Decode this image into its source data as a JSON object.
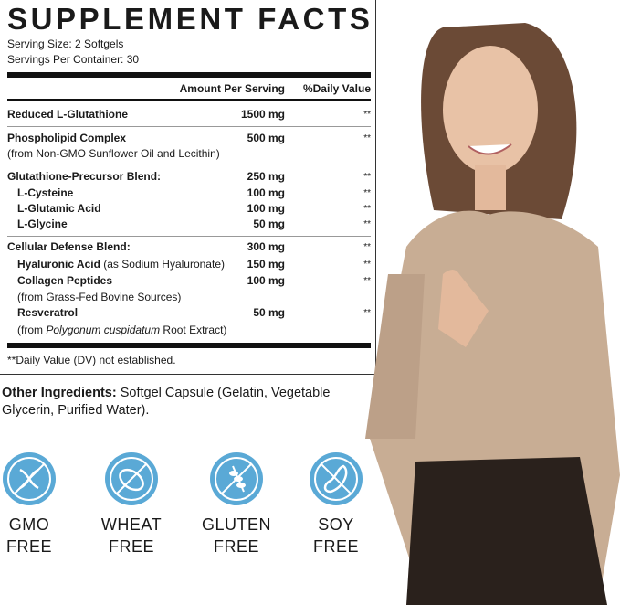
{
  "facts": {
    "title": "SUPPLEMENT FACTS",
    "serving_size": "Serving Size: 2 Softgels",
    "servings_per_container": "Servings Per Container: 30",
    "header_amount": "Amount Per Serving",
    "header_dv": "%Daily Value",
    "rows": [
      {
        "name": "Reduced L-Glutathione",
        "amount": "1500 mg",
        "dv": "**"
      },
      {
        "name": "Phospholipid Complex",
        "amount": "500 mg",
        "dv": "**"
      },
      {
        "name": "(from Non-GMO Sunflower Oil and Lecithin)"
      },
      {
        "name": "Glutathione-Precursor Blend:",
        "amount": "250 mg",
        "dv": "**"
      },
      {
        "name": "L-Cysteine",
        "amount": "100 mg",
        "dv": "**"
      },
      {
        "name": "L-Glutamic Acid",
        "amount": "100 mg",
        "dv": "**"
      },
      {
        "name": "L-Glycine",
        "amount": "50 mg",
        "dv": "**"
      },
      {
        "name": "Cellular Defense Blend:",
        "amount": "300 mg",
        "dv": "**"
      },
      {
        "name": "Hyaluronic Acid",
        "name_suffix": " (as Sodium Hyaluronate)",
        "amount": "150 mg",
        "dv": "**"
      },
      {
        "name": "Collagen Peptides",
        "amount": "100 mg",
        "dv": "**"
      },
      {
        "name": "(from Grass-Fed Bovine Sources)"
      },
      {
        "name": "Resveratrol",
        "amount": "50 mg",
        "dv": "**"
      },
      {
        "name_prefix": "(from ",
        "name_italic": "Polygonum cuspidatum",
        "name_suffix": " Root Extract)"
      }
    ],
    "footnote": "**Daily Value (DV) not established."
  },
  "other_ingredients": {
    "label": "Other Ingredients:",
    "text": " Softgel Capsule (Gelatin, Vegetable Glycerin, Purified Water)."
  },
  "badges": [
    {
      "icon": "no-gmo-dna-icon",
      "line1": "GMO",
      "line2": "FREE"
    },
    {
      "icon": "no-wheat-bread-icon",
      "line1": "WHEAT",
      "line2": "FREE"
    },
    {
      "icon": "no-gluten-grain-icon",
      "line1": "GLUTEN",
      "line2": "FREE"
    },
    {
      "icon": "no-soy-bean-icon",
      "line1": "SOY",
      "line2": "FREE"
    }
  ],
  "colors": {
    "badge_blue": "#5aa9d6",
    "text": "#1a1a1a"
  }
}
